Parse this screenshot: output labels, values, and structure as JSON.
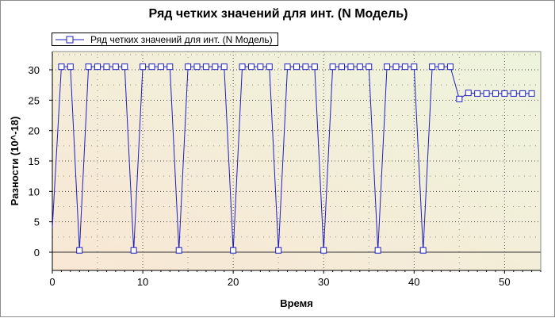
{
  "chart_data": {
    "type": "line",
    "title": "Ряд четких значений для инт. (N Модель)",
    "xlabel": "Время",
    "ylabel": "Разности (10^-18)",
    "xlim": [
      0,
      54
    ],
    "ylim": [
      -3,
      33
    ],
    "xticks": [
      0,
      10,
      20,
      30,
      40,
      50
    ],
    "yticks": [
      0,
      5,
      10,
      15,
      20,
      25,
      30
    ],
    "grid": true,
    "legend_position": "top-left",
    "colors": {
      "series": "#1f1fbf",
      "bg_left": "#f8e7d5",
      "bg_right": "#eef4dc",
      "grid": "#555555"
    },
    "series": [
      {
        "name": "Ряд четких значений для инт. (N Модель)",
        "marker": "square",
        "x": [
          0,
          1,
          2,
          3,
          4,
          5,
          6,
          7,
          8,
          9,
          10,
          11,
          12,
          13,
          14,
          15,
          16,
          17,
          18,
          19,
          20,
          21,
          22,
          23,
          24,
          25,
          26,
          27,
          28,
          29,
          30,
          31,
          32,
          33,
          34,
          35,
          36,
          37,
          38,
          39,
          40,
          41,
          42,
          43,
          44,
          45,
          46,
          47,
          48,
          49,
          50,
          51,
          52,
          53
        ],
        "y": [
          4,
          30.5,
          30.5,
          0.3,
          30.5,
          30.5,
          30.5,
          30.5,
          30.5,
          0.3,
          30.5,
          30.5,
          30.5,
          30.5,
          0.3,
          30.5,
          30.5,
          30.5,
          30.5,
          30.5,
          0.3,
          30.5,
          30.5,
          30.5,
          30.5,
          0.3,
          30.5,
          30.5,
          30.5,
          30.5,
          0.3,
          30.5,
          30.5,
          30.5,
          30.5,
          30.5,
          0.3,
          30.5,
          30.5,
          30.5,
          30.5,
          0.3,
          30.5,
          30.5,
          30.5,
          25.2,
          26.2,
          26.1,
          26.1,
          26.1,
          26.1,
          26.1,
          26.1,
          26.1
        ]
      }
    ]
  }
}
